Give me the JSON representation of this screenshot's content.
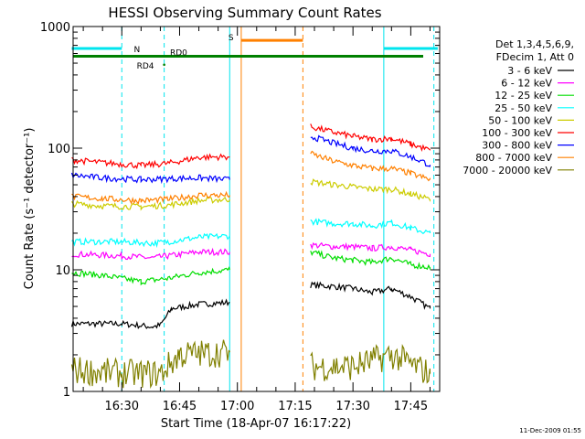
{
  "chart_data": {
    "type": "line",
    "title": "HESSI Observing Summary Count Rates",
    "xlabel": "Start Time (18-Apr-07 16:17:22)",
    "ylabel": "Count Rate (s⁻¹ detector⁻¹)",
    "yscale": "log",
    "ylim": [
      1,
      1000
    ],
    "xlim": [
      "16:17:22",
      "17:52:30"
    ],
    "x_ticks": [
      "16:30",
      "16:45",
      "17:00",
      "17:15",
      "17:30",
      "17:45"
    ],
    "y_ticks": [
      "1",
      "10",
      "100",
      "1000"
    ],
    "legend_header": [
      "Det 1,3,4,5,6,9,",
      "FDecim 1, Att 0"
    ],
    "legend_position": "right",
    "footer": "11-Dec-2009 01:55",
    "series": [
      {
        "name": "3 - 6 keV",
        "color": "#000000",
        "segments": [
          {
            "x": [
              "16:17",
              "16:30",
              "16:38",
              "16:40",
              "16:43",
              "16:50",
              "16:58"
            ],
            "y": [
              3.6,
              3.6,
              3.4,
              3.5,
              4.8,
              5.2,
              5.4
            ]
          },
          {
            "x": [
              "17:19",
              "17:25",
              "17:30",
              "17:35",
              "17:40",
              "17:45",
              "17:50"
            ],
            "y": [
              7.5,
              7.3,
              7.0,
              6.5,
              7.0,
              6.0,
              4.8
            ]
          }
        ]
      },
      {
        "name": "6 - 12 keV",
        "color": "#ff00ff",
        "segments": [
          {
            "x": [
              "16:17",
              "16:30",
              "16:38",
              "16:42",
              "16:50",
              "16:58"
            ],
            "y": [
              13.5,
              13.0,
              12.5,
              13.0,
              14.0,
              14.0
            ]
          },
          {
            "x": [
              "17:19",
              "17:25",
              "17:30",
              "17:35",
              "17:40",
              "17:45",
              "17:50"
            ],
            "y": [
              16.0,
              15.5,
              15.5,
              15.0,
              15.5,
              14.5,
              13.5
            ]
          }
        ]
      },
      {
        "name": "12 - 25 keV",
        "color": "#00dd00",
        "segments": [
          {
            "x": [
              "16:17",
              "16:25",
              "16:35",
              "16:42",
              "16:50",
              "16:58"
            ],
            "y": [
              9.5,
              9.0,
              8.0,
              8.5,
              9.5,
              10.0
            ]
          },
          {
            "x": [
              "17:19",
              "17:25",
              "17:30",
              "17:35",
              "17:40",
              "17:45",
              "17:50"
            ],
            "y": [
              14.0,
              12.5,
              12.0,
              11.5,
              12.5,
              11.0,
              10.5
            ]
          }
        ]
      },
      {
        "name": "25 - 50 keV",
        "color": "#00ffff",
        "segments": [
          {
            "x": [
              "16:17",
              "16:30",
              "16:38",
              "16:42",
              "16:50",
              "16:58"
            ],
            "y": [
              17.0,
              17.0,
              16.5,
              17.0,
              18.5,
              19.0
            ]
          },
          {
            "x": [
              "17:19",
              "17:25",
              "17:30",
              "17:35",
              "17:40",
              "17:45",
              "17:50"
            ],
            "y": [
              25.0,
              24.0,
              24.0,
              23.0,
              24.5,
              22.0,
              20.0
            ]
          }
        ]
      },
      {
        "name": "50 - 100 keV",
        "color": "#cccc00",
        "segments": [
          {
            "x": [
              "16:17",
              "16:25",
              "16:35",
              "16:42",
              "16:50",
              "16:58"
            ],
            "y": [
              35.0,
              33.5,
              33.0,
              34.0,
              37.0,
              38.0
            ]
          },
          {
            "x": [
              "17:19",
              "17:25",
              "17:30",
              "17:35",
              "17:40",
              "17:45",
              "17:50"
            ],
            "y": [
              53.0,
              50.0,
              48.0,
              46.0,
              46.0,
              42.0,
              38.0
            ]
          }
        ]
      },
      {
        "name": "100 - 300 keV",
        "color": "#ff0000",
        "segments": [
          {
            "x": [
              "16:17",
              "16:25",
              "16:35",
              "16:42",
              "16:50",
              "16:58"
            ],
            "y": [
              80.0,
              76.0,
              72.0,
              75.0,
              84.0,
              85.0
            ]
          },
          {
            "x": [
              "17:19",
              "17:25",
              "17:30",
              "17:35",
              "17:40",
              "17:45",
              "17:50"
            ],
            "y": [
              150.0,
              135.0,
              125.0,
              118.0,
              120.0,
              108.0,
              96.0
            ]
          }
        ]
      },
      {
        "name": "300 - 800 keV",
        "color": "#0000ff",
        "segments": [
          {
            "x": [
              "16:17",
              "16:25",
              "16:35",
              "16:42",
              "16:50",
              "16:58"
            ],
            "y": [
              60.0,
              57.0,
              55.0,
              56.0,
              57.0,
              55.0
            ]
          },
          {
            "x": [
              "17:19",
              "17:25",
              "17:30",
              "17:35",
              "17:40",
              "17:45",
              "17:50"
            ],
            "y": [
              125.0,
              110.0,
              100.0,
              95.0,
              95.0,
              85.0,
              73.0
            ]
          }
        ]
      },
      {
        "name": "800 - 7000 keV",
        "color": "#ff8000",
        "segments": [
          {
            "x": [
              "16:17",
              "16:25",
              "16:35",
              "16:42",
              "16:50",
              "16:58"
            ],
            "y": [
              40.0,
              38.5,
              37.0,
              38.0,
              41.0,
              41.0
            ]
          },
          {
            "x": [
              "17:19",
              "17:25",
              "17:30",
              "17:35",
              "17:40",
              "17:45",
              "17:50"
            ],
            "y": [
              90.0,
              78.0,
              72.0,
              68.0,
              68.0,
              62.0,
              55.0
            ]
          }
        ]
      },
      {
        "name": "7000 - 20000 keV",
        "color": "#808000",
        "segments": [
          {
            "x": [
              "16:17",
              "16:30",
              "16:40",
              "16:45",
              "16:58"
            ],
            "y": [
              1.5,
              1.4,
              1.4,
              2.0,
              2.1
            ]
          },
          {
            "x": [
              "17:19",
              "17:30",
              "17:40",
              "17:50"
            ],
            "y": [
              1.6,
              1.6,
              2.0,
              1.4
            ]
          }
        ]
      }
    ],
    "annotations": [
      {
        "label": "N",
        "color": "#00e5ee",
        "y": 660,
        "x_start": "16:17",
        "x_end": "16:30"
      },
      {
        "label": "",
        "color": "#00e5ee",
        "y": 660,
        "x_start": "17:38",
        "x_end": "17:52"
      },
      {
        "label": "S",
        "color": "#ff8000",
        "y": 770,
        "x_start": "17:01",
        "x_end": "17:17"
      },
      {
        "label": "RD0",
        "color": "#008000",
        "y": 570
      },
      {
        "label": "RD4",
        "color": "#008000",
        "y": 485,
        "x": "16:41"
      }
    ],
    "vertical_lines": [
      {
        "time": "16:30",
        "color": "#00e5ee",
        "style": "dashed"
      },
      {
        "time": "16:41",
        "color": "#00e5ee",
        "style": "dashed"
      },
      {
        "time": "16:58",
        "color": "#00e5ee",
        "style": "solid"
      },
      {
        "time": "17:01",
        "color": "#ff8000",
        "style": "solid"
      },
      {
        "time": "17:17",
        "color": "#ff8000",
        "style": "dashed"
      },
      {
        "time": "17:38",
        "color": "#00e5ee",
        "style": "solid"
      },
      {
        "time": "17:51",
        "color": "#00e5ee",
        "style": "dashed"
      }
    ]
  }
}
